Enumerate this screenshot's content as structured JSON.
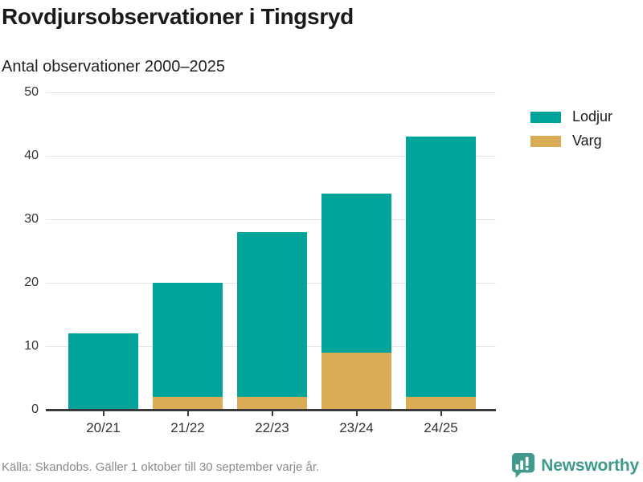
{
  "header": {
    "title": "Rovdjursobservationer i Tingsryd",
    "subtitle": "Antal observationer 2000–2025"
  },
  "chart_data": {
    "type": "bar",
    "stacked": true,
    "title": "Rovdjursobservationer i Tingsryd",
    "subtitle": "Antal observationer 2000–2025",
    "categories": [
      "20/21",
      "21/22",
      "22/23",
      "23/24",
      "24/25"
    ],
    "series": [
      {
        "name": "Lodjur",
        "color": "#00a49a",
        "values": [
          12,
          18,
          26,
          25,
          41
        ]
      },
      {
        "name": "Varg",
        "color": "#d9ac55",
        "values": [
          0,
          2,
          2,
          9,
          2
        ]
      }
    ],
    "stacked_totals": [
      12,
      20,
      28,
      34,
      43
    ],
    "xlabel": "",
    "ylabel": "",
    "ylim": [
      0,
      50
    ],
    "yticks": [
      0,
      10,
      20,
      30,
      40,
      50
    ],
    "grid": true,
    "legend_position": "top-right"
  },
  "legend": {
    "items": [
      {
        "label": "Lodjur",
        "color": "#00a49a"
      },
      {
        "label": "Varg",
        "color": "#d9ac55"
      }
    ]
  },
  "footer": {
    "source": "Källa: Skandobs. Gäller 1 oktober till 30 september varje år.",
    "brand": "Newsworthy"
  },
  "colors": {
    "teal": "#00a49a",
    "gold": "#d9ac55",
    "brand_teal": "#3f9a8c",
    "grid": "#e3e3e3",
    "axis": "#3a3a3a",
    "title_text": "#1a1a1a",
    "muted_text": "#8a8a8a"
  }
}
